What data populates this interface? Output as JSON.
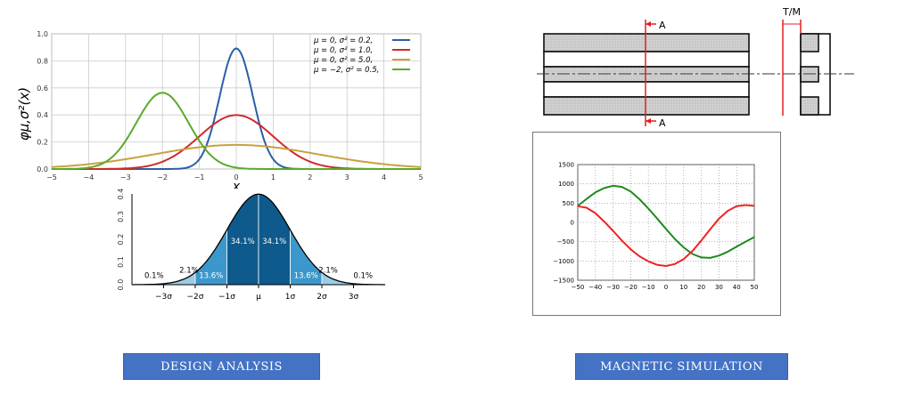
{
  "buttons": {
    "design_analysis": "DESIGN ANALYSIS",
    "magnetic_simulation": "MAGNETIC SIMULATION"
  },
  "colors": {
    "button_bg": "#4472c4",
    "blue": "#2a5fa6",
    "red": "#d02a2a",
    "gold": "#c8a040",
    "green": "#5aaa2a",
    "sim_green": "#1e8a1e",
    "sim_red": "#ee2222"
  },
  "cross_section": {
    "section_label_top": "A",
    "section_label_bottom": "A",
    "tm_label": "T/M"
  },
  "chart_data": [
    {
      "type": "line",
      "title": "",
      "ylabel": "φμ,σ²(x)",
      "xlabel": "x",
      "xlim": [
        -5,
        5
      ],
      "ylim": [
        0,
        1.0
      ],
      "x_ticks": [
        "−5",
        "−4",
        "−3",
        "−2",
        "−1",
        "0",
        "1",
        "2",
        "3",
        "4",
        "5"
      ],
      "y_ticks": [
        "0.0",
        "0.2",
        "0.4",
        "0.6",
        "0.8",
        "1.0"
      ],
      "grid": true,
      "legend_position": "top-right",
      "series": [
        {
          "name": "μ = 0,    σ² = 0.2,",
          "mu": 0,
          "var": 0.2,
          "color": "#2a5fa6"
        },
        {
          "name": "μ = 0,    σ² = 1.0,",
          "mu": 0,
          "var": 1.0,
          "color": "#d02a2a"
        },
        {
          "name": "μ = 0,    σ² = 5.0,",
          "mu": 0,
          "var": 5.0,
          "color": "#c8a040"
        },
        {
          "name": "μ = −2,  σ² = 0.5,",
          "mu": -2,
          "var": 0.5,
          "color": "#5aaa2a"
        }
      ]
    },
    {
      "type": "area",
      "title": "",
      "xlim": [
        -4,
        4
      ],
      "ylim": [
        0,
        0.4
      ],
      "x_ticks": [
        "−3σ",
        "−2σ",
        "−1σ",
        "μ",
        "1σ",
        "2σ",
        "3σ"
      ],
      "y_ticks": [
        "0.0",
        "0.1",
        "0.2",
        "0.3",
        "0.4"
      ],
      "regions": [
        {
          "from": -3,
          "to": -2,
          "percent": "2.1%"
        },
        {
          "from": -2,
          "to": -1,
          "percent": "13.6%"
        },
        {
          "from": -1,
          "to": 0,
          "percent": "34.1%"
        },
        {
          "from": 0,
          "to": 1,
          "percent": "34.1%"
        },
        {
          "from": 1,
          "to": 2,
          "percent": "13.6%"
        },
        {
          "from": 2,
          "to": 3,
          "percent": "2.1%"
        }
      ],
      "tail_labels": [
        "0.1%",
        "0.1%"
      ],
      "region_colors": [
        "#9ccbe6",
        "#3c98cc",
        "#0f5a8c",
        "#0f5a8c",
        "#3c98cc",
        "#9ccbe6"
      ]
    },
    {
      "type": "line",
      "title": "",
      "xlim": [
        -50,
        50
      ],
      "ylim": [
        -1500,
        1500
      ],
      "x_ticks": [
        "−50",
        "−40",
        "−30",
        "−20",
        "−10",
        "0",
        "10",
        "20",
        "30",
        "40",
        "50"
      ],
      "y_ticks": [
        "1500",
        "1000",
        "500",
        "0",
        "−500",
        "−1000",
        "−1500"
      ],
      "grid": true,
      "series": [
        {
          "color": "#1e8a1e",
          "x": [
            -50,
            -45,
            -40,
            -35,
            -30,
            -25,
            -20,
            -15,
            -10,
            -5,
            0,
            5,
            10,
            15,
            20,
            25,
            30,
            35,
            40,
            45,
            50
          ],
          "y": [
            430,
            610,
            780,
            890,
            950,
            920,
            800,
            600,
            360,
            100,
            -170,
            -430,
            -650,
            -820,
            -910,
            -920,
            -860,
            -760,
            -630,
            -500,
            -380
          ]
        },
        {
          "color": "#ee2222",
          "x": [
            -50,
            -45,
            -40,
            -35,
            -30,
            -25,
            -20,
            -15,
            -10,
            -5,
            0,
            5,
            10,
            15,
            20,
            25,
            30,
            35,
            40,
            45,
            50
          ],
          "y": [
            420,
            380,
            240,
            20,
            -220,
            -470,
            -700,
            -880,
            -1010,
            -1100,
            -1130,
            -1080,
            -950,
            -740,
            -470,
            -180,
            100,
            300,
            420,
            450,
            430
          ]
        }
      ]
    }
  ]
}
